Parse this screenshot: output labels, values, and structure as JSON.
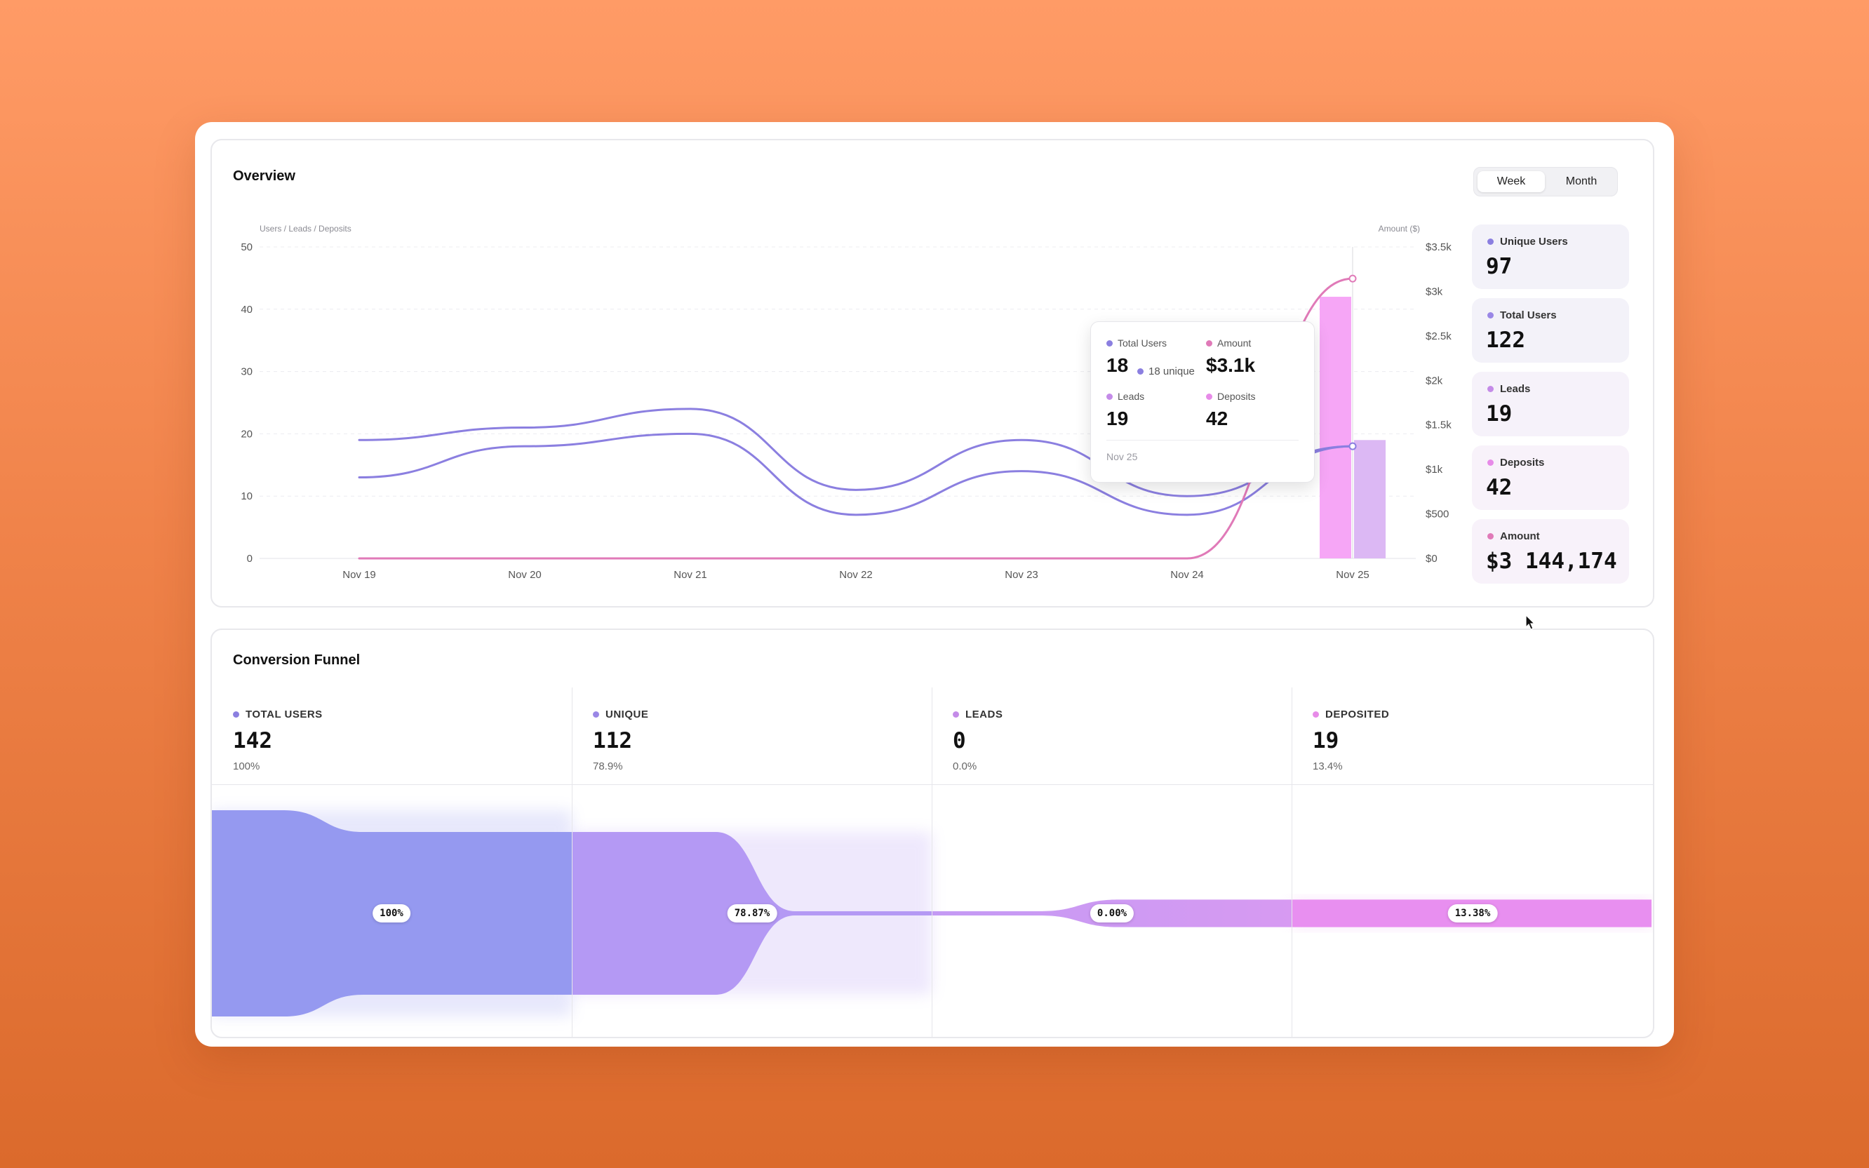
{
  "overview": {
    "title": "Overview",
    "toggle": {
      "week": "Week",
      "month": "Month",
      "selected": "Week"
    }
  },
  "chart_data": {
    "type": "line",
    "left_axis_title": "Users / Leads / Deposits",
    "right_axis_title": "Amount ($)",
    "categories": [
      "Nov 19",
      "Nov 20",
      "Nov 21",
      "Nov 22",
      "Nov 23",
      "Nov 24",
      "Nov 25"
    ],
    "ylim_left": [
      0,
      50
    ],
    "yticks_left": [
      "0",
      "10",
      "20",
      "30",
      "40",
      "50"
    ],
    "ylim_right": [
      0,
      3500
    ],
    "yticks_right": [
      "$0",
      "$500",
      "$1k",
      "$1.5k",
      "$2k",
      "$2.5k",
      "$3k",
      "$3.5k"
    ],
    "grid": true,
    "series": [
      {
        "name": "Total Users",
        "axis": "left",
        "color": "#8B7FE0",
        "values": [
          19,
          21,
          24,
          11,
          19,
          10,
          18
        ]
      },
      {
        "name": "Unique Users",
        "axis": "left",
        "color": "#8B7FE0",
        "values": [
          13,
          18,
          20,
          7,
          14,
          7,
          18
        ]
      },
      {
        "name": "Amount",
        "axis": "right",
        "color": "#E07AB8",
        "values": [
          0,
          0,
          0,
          0,
          0,
          0,
          3144
        ]
      }
    ],
    "bars": [
      {
        "name": "Deposits",
        "category": "Nov 25",
        "value": 42,
        "color": "#F6A6F6"
      },
      {
        "name": "Leads",
        "category": "Nov 25",
        "value": 19,
        "color": "#DCB8F4"
      }
    ]
  },
  "tooltip": {
    "total_users_label": "Total Users",
    "total_users_value": "18",
    "unique_note": "18 unique",
    "amount_label": "Amount",
    "amount_value": "$3.1k",
    "leads_label": "Leads",
    "leads_value": "19",
    "deposits_label": "Deposits",
    "deposits_value": "42",
    "date": "Nov 25"
  },
  "stats": [
    {
      "label": "Unique Users",
      "value": "97",
      "dot": "#8B7FE0",
      "bg": "#F3F2F9"
    },
    {
      "label": "Total Users",
      "value": "122",
      "dot": "#9A87E6",
      "bg": "#F3F2F9"
    },
    {
      "label": "Leads",
      "value": "19",
      "dot": "#C48BE8",
      "bg": "#F6F2FA"
    },
    {
      "label": "Deposits",
      "value": "42",
      "dot": "#E78BE8",
      "bg": "#F8F2FA"
    },
    {
      "label": "Amount",
      "value": "$3 144,174",
      "dot": "#E07AB8",
      "bg": "#F8F2FA"
    }
  ],
  "funnel": {
    "title": "Conversion Funnel",
    "stages": [
      {
        "label": "TOTAL USERS",
        "value": "142",
        "pct": "100%",
        "badge": "100%",
        "dot": "#8B7FE0"
      },
      {
        "label": "UNIQUE",
        "value": "112",
        "pct": "78.9%",
        "badge": "78.87%",
        "dot": "#9A87E6"
      },
      {
        "label": "LEADS",
        "value": "0",
        "pct": "0.0%",
        "badge": "0.00%",
        "dot": "#C48BE8"
      },
      {
        "label": "DEPOSITED",
        "value": "19",
        "pct": "13.4%",
        "badge": "13.38%",
        "dot": "#E78BE8"
      }
    ]
  }
}
